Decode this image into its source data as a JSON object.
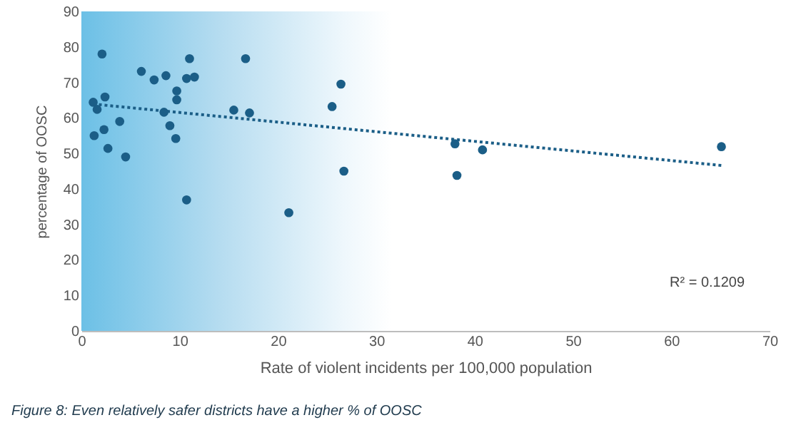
{
  "chart_data": {
    "type": "scatter",
    "xlabel": "Rate of violent incidents per 100,000 population",
    "ylabel": "percentage of OOSC",
    "xlim": [
      0,
      70
    ],
    "xticks": [
      0,
      10,
      20,
      30,
      40,
      50,
      60,
      70
    ],
    "ylim": [
      0,
      90
    ],
    "yticks": [
      0,
      10,
      20,
      30,
      40,
      50,
      60,
      70,
      80,
      90
    ],
    "grid": false,
    "annotations": [
      "R² = 0.1209",
      "Figure 8: Even relatively safer districts have a higher % of OOSC"
    ],
    "series": [
      {
        "color": "#1b5e87",
        "marker": "circle",
        "x": [
          1.2,
          1.6,
          1.3,
          2.1,
          2.4,
          2.3,
          2.7,
          3.9,
          4.5,
          6.1,
          7.4,
          8.6,
          8.4,
          9.0,
          9.6,
          9.7,
          9.7,
          10.7,
          11.5,
          11.0,
          10.7,
          15.5,
          16.7,
          17.1,
          21.1,
          25.5,
          26.4,
          26.7,
          38.0,
          38.2,
          40.8,
          65.1
        ],
        "values": [
          64.4,
          62.4,
          55.0,
          78.0,
          65.9,
          56.7,
          51.4,
          59.0,
          49.0,
          73.1,
          70.7,
          71.9,
          61.6,
          57.8,
          54.2,
          67.6,
          65.1,
          71.1,
          71.5,
          76.7,
          36.9,
          62.2,
          76.7,
          61.4,
          33.3,
          63.2,
          69.5,
          45.0,
          52.7,
          43.8,
          51.0,
          51.9
        ]
      },
      {
        "type": "line",
        "color": "#1b5e87",
        "marker": "none",
        "line_style": "dotted",
        "x": [
          1.2,
          65.1
        ],
        "values": [
          63.9,
          46.6
        ]
      }
    ]
  }
}
